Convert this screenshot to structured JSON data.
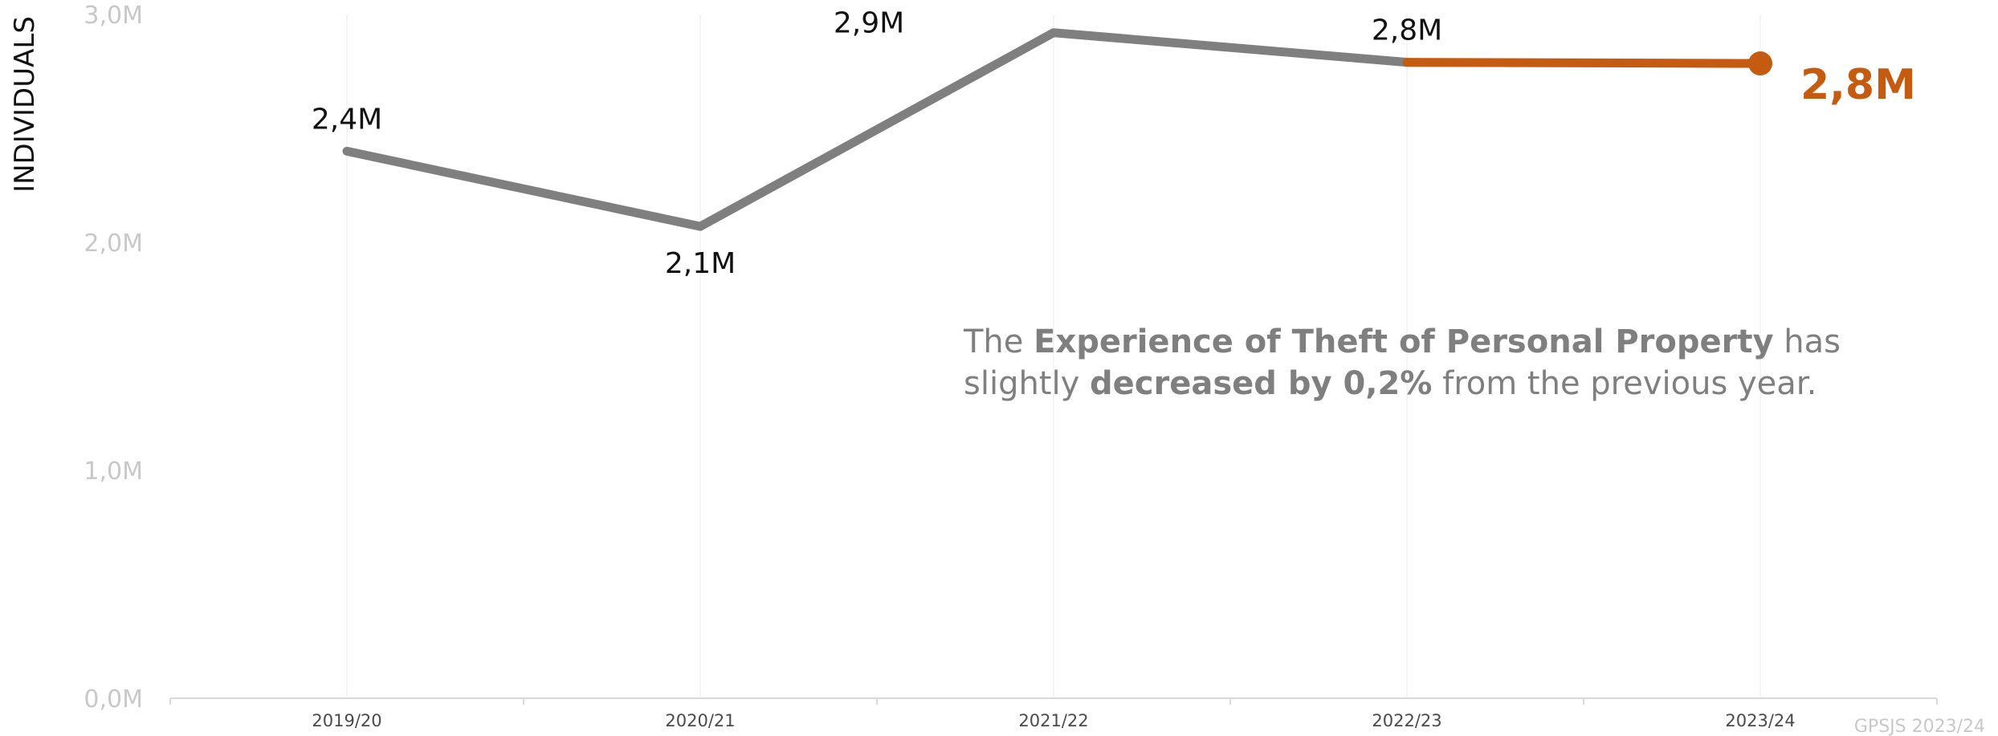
{
  "chart_data": {
    "type": "line",
    "title": "",
    "ylabel": "INDIVIDUALS",
    "xlabel": "",
    "categories": [
      "2019/20",
      "2020/21",
      "2021/22",
      "2022/23",
      "2023/24"
    ],
    "values": [
      2.4,
      2.07,
      2.92,
      2.79,
      2.785
    ],
    "data_labels": [
      "2,4M",
      "2,1M",
      "2,9M",
      "2,8M",
      "2,8M"
    ],
    "ylim": [
      0,
      3
    ],
    "yticks": [
      0,
      1,
      2,
      3
    ],
    "ytick_labels": [
      "0,0M",
      "1,0M",
      "2,0M",
      "3,0M"
    ],
    "grid": "vertical",
    "colors": {
      "series": "#7f7f7f",
      "highlight": "#c55a11"
    },
    "highlight_last_segment": true
  },
  "annotation": {
    "t1": "The ",
    "b1": "Experience of Theft of Personal Property",
    "t2": " has",
    "t3": "slightly ",
    "b2": "decreased by 0,2%",
    "t4": " from the previous year."
  },
  "source": "GPSJS 2023/24"
}
